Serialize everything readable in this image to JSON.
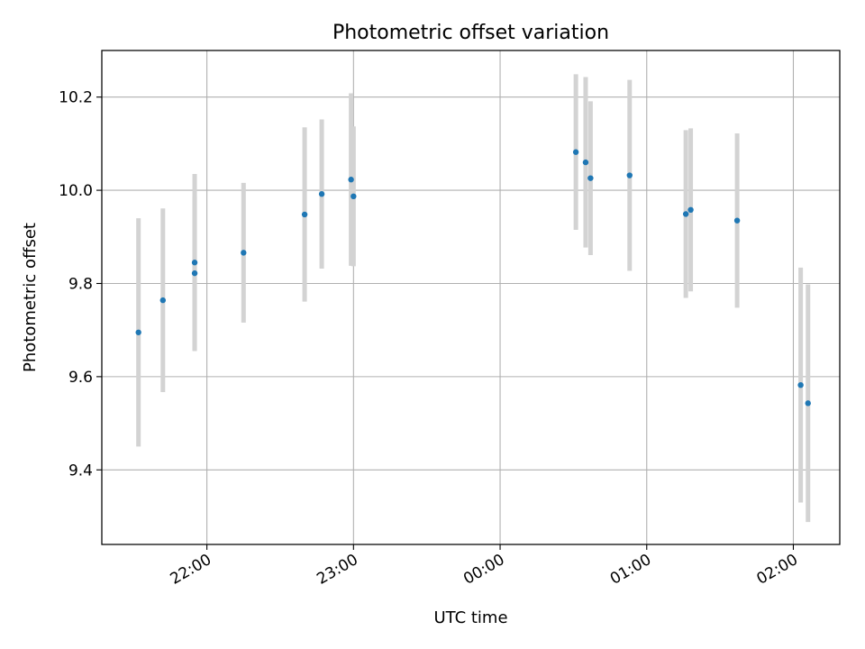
{
  "chart_data": {
    "type": "scatter",
    "title": "Photometric offset variation",
    "xlabel": "UTC time",
    "ylabel": "Photometric offset",
    "x_axis_kind": "time",
    "x_ticks": [
      "22:00",
      "23:00",
      "00:00",
      "01:00",
      "02:00"
    ],
    "y_ticks": [
      9.4,
      9.6,
      9.8,
      10.0,
      10.2
    ],
    "ylim": [
      9.24,
      10.3
    ],
    "xlim": [
      "21:17",
      "02:19"
    ],
    "grid": true,
    "point_color": "#1f77b4",
    "errorbar_color": "#d3d3d3",
    "points": [
      {
        "x": "21:32",
        "y": 9.695,
        "yerr": 0.245
      },
      {
        "x": "21:42",
        "y": 9.764,
        "yerr": 0.197
      },
      {
        "x": "21:55",
        "y": 9.845,
        "yerr": 0.19
      },
      {
        "x": "21:55",
        "y": 9.822,
        "yerr": 0.165
      },
      {
        "x": "22:15",
        "y": 9.866,
        "yerr": 0.15
      },
      {
        "x": "22:40",
        "y": 9.948,
        "yerr": 0.187
      },
      {
        "x": "22:47",
        "y": 9.992,
        "yerr": 0.16
      },
      {
        "x": "22:59",
        "y": 10.023,
        "yerr": 0.185
      },
      {
        "x": "23:00",
        "y": 9.987,
        "yerr": 0.15
      },
      {
        "x": "00:31",
        "y": 10.082,
        "yerr": 0.167
      },
      {
        "x": "00:35",
        "y": 10.06,
        "yerr": 0.183
      },
      {
        "x": "00:37",
        "y": 10.026,
        "yerr": 0.165
      },
      {
        "x": "00:53",
        "y": 10.032,
        "yerr": 0.205
      },
      {
        "x": "01:16",
        "y": 9.949,
        "yerr": 0.18
      },
      {
        "x": "01:18",
        "y": 9.958,
        "yerr": 0.175
      },
      {
        "x": "01:37",
        "y": 9.935,
        "yerr": 0.187
      },
      {
        "x": "02:03",
        "y": 9.582,
        "yerr": 0.252
      },
      {
        "x": "02:06",
        "y": 9.543,
        "yerr": 0.255
      }
    ]
  }
}
